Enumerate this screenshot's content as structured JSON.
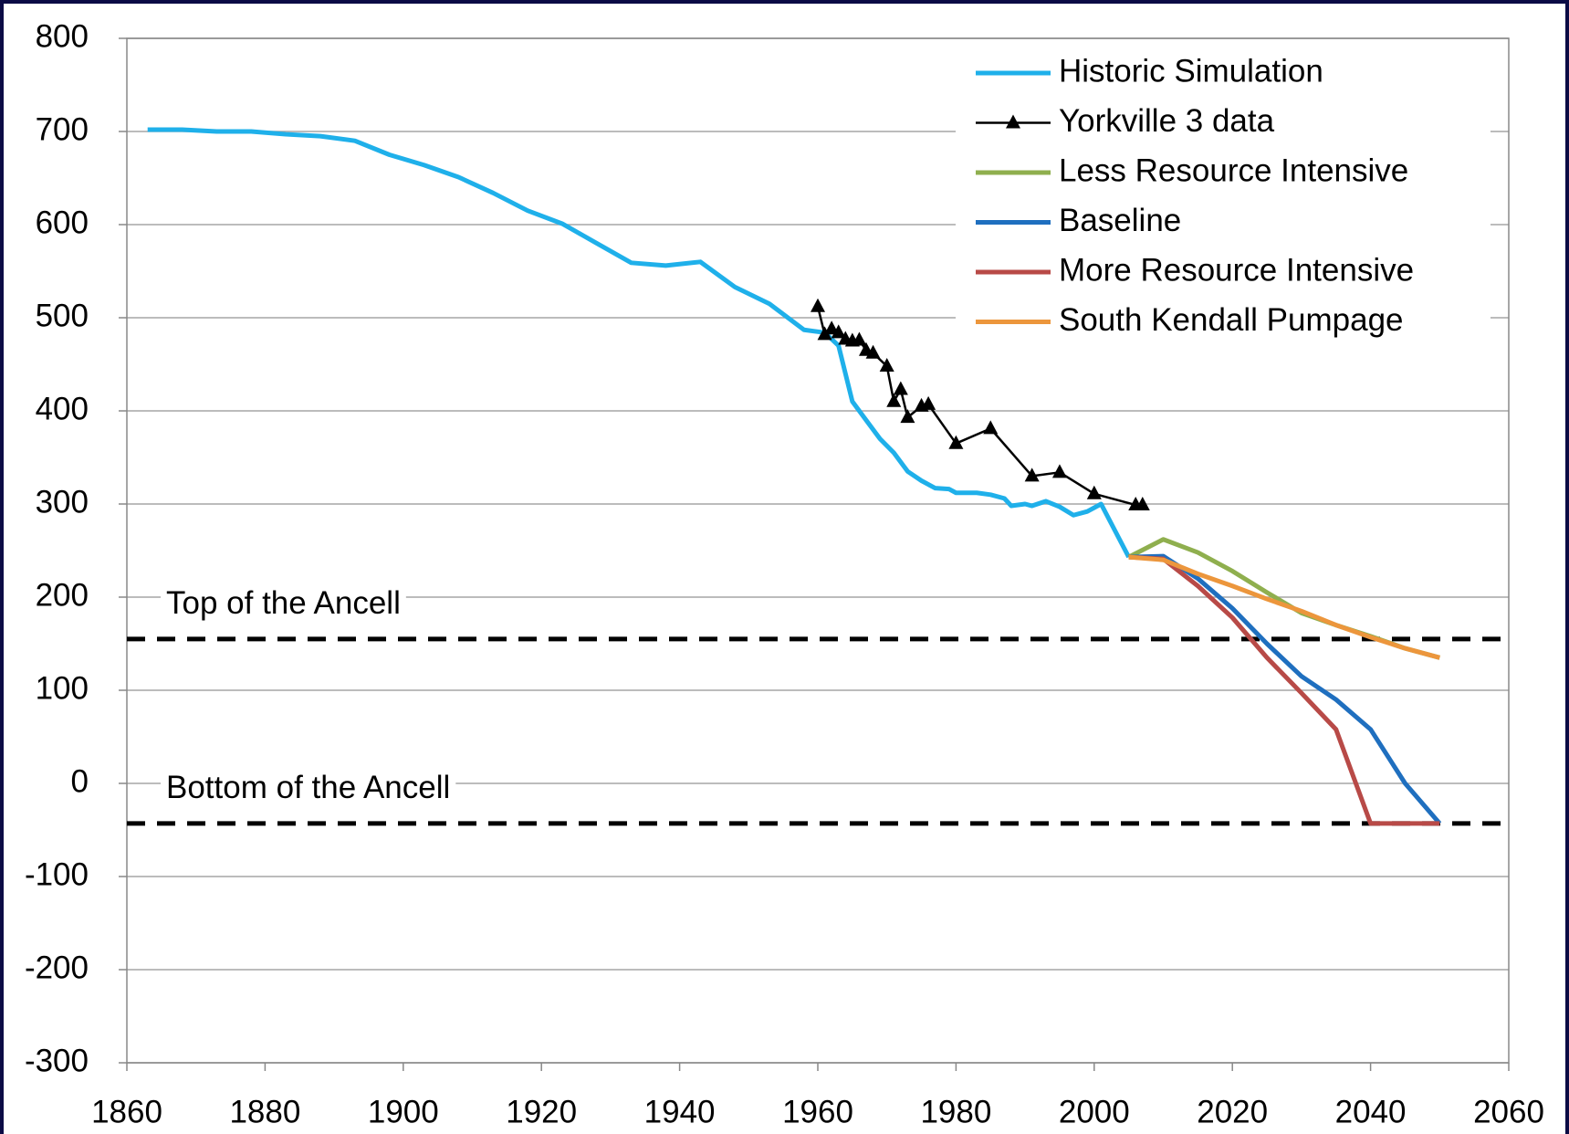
{
  "chart_data": {
    "type": "line",
    "xlim": [
      1860,
      2060
    ],
    "xticks": [
      1860,
      1880,
      1900,
      1920,
      1940,
      1960,
      1980,
      2000,
      2020,
      2040,
      2060
    ],
    "ylim": [
      -300,
      800
    ],
    "yticks": [
      -300,
      -200,
      -100,
      0,
      100,
      200,
      300,
      400,
      500,
      600,
      700,
      800
    ],
    "grid": true,
    "legend": "upper right",
    "reference_lines": [
      {
        "label": "Top of the Ancell",
        "value": 155
      },
      {
        "label": "Bottom of the Ancell",
        "value": -43
      }
    ],
    "series": [
      {
        "name": "Historic Simulation",
        "color": "#1fb0ea",
        "x": [
          1863,
          1868,
          1873,
          1878,
          1883,
          1888,
          1893,
          1898,
          1903,
          1908,
          1913,
          1918,
          1923,
          1928,
          1933,
          1938,
          1943,
          1948,
          1953,
          1958,
          1961,
          1963,
          1965,
          1967,
          1969,
          1971,
          1973,
          1975,
          1977,
          1979,
          1980,
          1983,
          1985,
          1987,
          1988,
          1990,
          1991,
          1993,
          1995,
          1997,
          1999,
          2001,
          2005
        ],
        "values": [
          702,
          702,
          700,
          700,
          697,
          695,
          690,
          675,
          664,
          651,
          634,
          615,
          601,
          580,
          559,
          556,
          560,
          533,
          515,
          487,
          484,
          470,
          410,
          390,
          370,
          355,
          335,
          325,
          317,
          316,
          312,
          312,
          310,
          306,
          298,
          300,
          298,
          303,
          297,
          288,
          292,
          300,
          243
        ]
      },
      {
        "name": "Yorkville 3 data",
        "color": "#000000",
        "marker": "triangle",
        "x": [
          1960,
          1961,
          1962,
          1963,
          1964,
          1965,
          1966,
          1967,
          1968,
          1970,
          1971,
          1972,
          1973,
          1975,
          1976,
          1980,
          1985,
          1991,
          1995,
          2000,
          2006,
          2007
        ],
        "values": [
          512,
          482,
          488,
          484,
          477,
          475,
          476,
          465,
          462,
          448,
          410,
          423,
          393,
          405,
          407,
          365,
          381,
          330,
          334,
          311,
          299,
          299
        ]
      },
      {
        "name": "Less Resource Intensive",
        "color": "#8faf4e",
        "x": [
          2005,
          2010,
          2015,
          2020,
          2025,
          2030,
          2035,
          2040,
          2045,
          2050
        ],
        "values": [
          243,
          262,
          248,
          228,
          205,
          183,
          170,
          158,
          145,
          135
        ]
      },
      {
        "name": "Baseline",
        "color": "#1f6fbf",
        "x": [
          2005,
          2010,
          2015,
          2020,
          2025,
          2030,
          2035,
          2040,
          2045,
          2050
        ],
        "values": [
          243,
          244,
          220,
          188,
          150,
          115,
          90,
          58,
          0,
          -43
        ]
      },
      {
        "name": "More Resource Intensive",
        "color": "#b84a47",
        "x": [
          2005,
          2010,
          2015,
          2020,
          2025,
          2030,
          2035,
          2040,
          2045,
          2050
        ],
        "values": [
          243,
          241,
          212,
          178,
          135,
          97,
          58,
          -43,
          -43,
          -43
        ]
      },
      {
        "name": "South Kendall Pumpage",
        "color": "#ec963c",
        "x": [
          2005,
          2010,
          2015,
          2020,
          2025,
          2030,
          2035,
          2040,
          2045,
          2050
        ],
        "values": [
          243,
          240,
          225,
          212,
          198,
          185,
          170,
          157,
          145,
          135
        ]
      }
    ]
  }
}
